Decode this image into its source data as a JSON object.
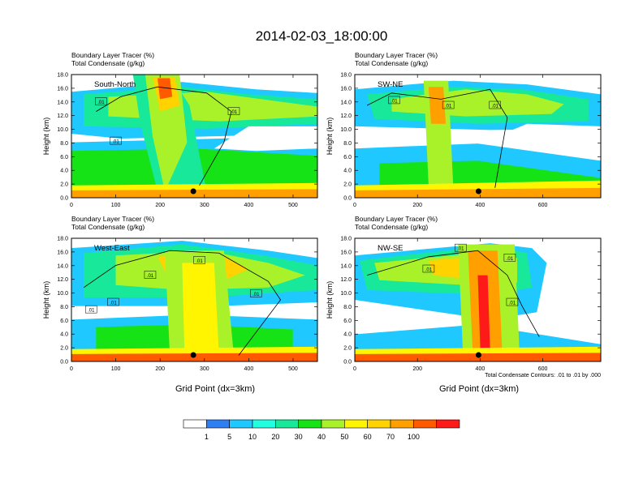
{
  "title": "2014-02-03_18:00:00",
  "xlabel": "Grid Point (dx=3km)",
  "footnote": "Total Condensate Contours: .01 to .01 by .000",
  "colors": {
    "white": "#ffffff",
    "levels": [
      "#ffffff",
      "#2e7ff2",
      "#1fc8ff",
      "#21ffe0",
      "#17e89a",
      "#16e316",
      "#a9f22a",
      "#fff500",
      "#ffd200",
      "#ffa000",
      "#ff5a00",
      "#ff1a1a"
    ],
    "contour": "#000000"
  },
  "colorbar": {
    "labels": [
      "1",
      "5",
      "10",
      "20",
      "30",
      "40",
      "50",
      "60",
      "70",
      "100"
    ]
  },
  "chart_data": [
    {
      "type": "heatmap",
      "panel": "South-North",
      "header_line1": "Boundary Layer Tracer   (%)",
      "header_line2": "Total Condensate   (g/kg)",
      "ylabel": "Height (km)",
      "yticks": [
        "0.0",
        "2.0",
        "4.0",
        "6.0",
        "8.0",
        "10.0",
        "12.0",
        "14.0",
        "16.0",
        "18.0"
      ],
      "ylim": [
        0,
        18
      ],
      "xticks": [
        "0",
        "100",
        "200",
        "300",
        "400",
        "500"
      ],
      "xtick_values": [
        0,
        100,
        200,
        300,
        400,
        500
      ],
      "xlim": [
        0,
        555
      ],
      "dot_x": 275,
      "contour_labels": [
        ".01",
        ".01",
        ".01"
      ]
    },
    {
      "type": "heatmap",
      "panel": "SW-NE",
      "header_line1": "Boundary Layer Tracer   (%)",
      "header_line2": "Total Condensate   (g/kg)",
      "ylabel": "Height (km)",
      "yticks": [
        "0.0",
        "2.0",
        "4.0",
        "6.0",
        "8.0",
        "10.0",
        "12.0",
        "14.0",
        "16.0",
        "18.0"
      ],
      "ylim": [
        0,
        18
      ],
      "xticks": [
        "0",
        "200",
        "400",
        "600"
      ],
      "xtick_values": [
        0,
        200,
        400,
        600
      ],
      "xlim": [
        0,
        785
      ],
      "dot_x": 395,
      "contour_labels": [
        ".01",
        ".01",
        ".01"
      ]
    },
    {
      "type": "heatmap",
      "panel": "West-East",
      "header_line1": "Boundary Layer Tracer   (%)",
      "header_line2": "Total Condensate   (g/kg)",
      "ylabel": "Height (km)",
      "yticks": [
        "0.0",
        "2.0",
        "4.0",
        "6.0",
        "8.0",
        "10.0",
        "12.0",
        "14.0",
        "16.0",
        "18.0"
      ],
      "ylim": [
        0,
        18
      ],
      "xticks": [
        "0",
        "100",
        "200",
        "300",
        "400",
        "500"
      ],
      "xtick_values": [
        0,
        100,
        200,
        300,
        400,
        500
      ],
      "xlim": [
        0,
        555
      ],
      "dot_x": 275,
      "contour_labels": [
        ".01",
        ".01",
        ".01",
        ".01",
        ".01"
      ]
    },
    {
      "type": "heatmap",
      "panel": "NW-SE",
      "header_line1": "Boundary Layer Tracer   (%)",
      "header_line2": "Total Condensate   (g/kg)",
      "ylabel": "Height (km)",
      "yticks": [
        "0.0",
        "2.0",
        "4.0",
        "6.0",
        "8.0",
        "10.0",
        "12.0",
        "14.0",
        "16.0",
        "18.0"
      ],
      "ylim": [
        0,
        18
      ],
      "xticks": [
        "0",
        "200",
        "400",
        "600"
      ],
      "xtick_values": [
        0,
        200,
        400,
        600
      ],
      "xlim": [
        0,
        785
      ],
      "dot_x": 395,
      "contour_labels": [
        ".01",
        ".01",
        ".01",
        ".01"
      ]
    }
  ]
}
